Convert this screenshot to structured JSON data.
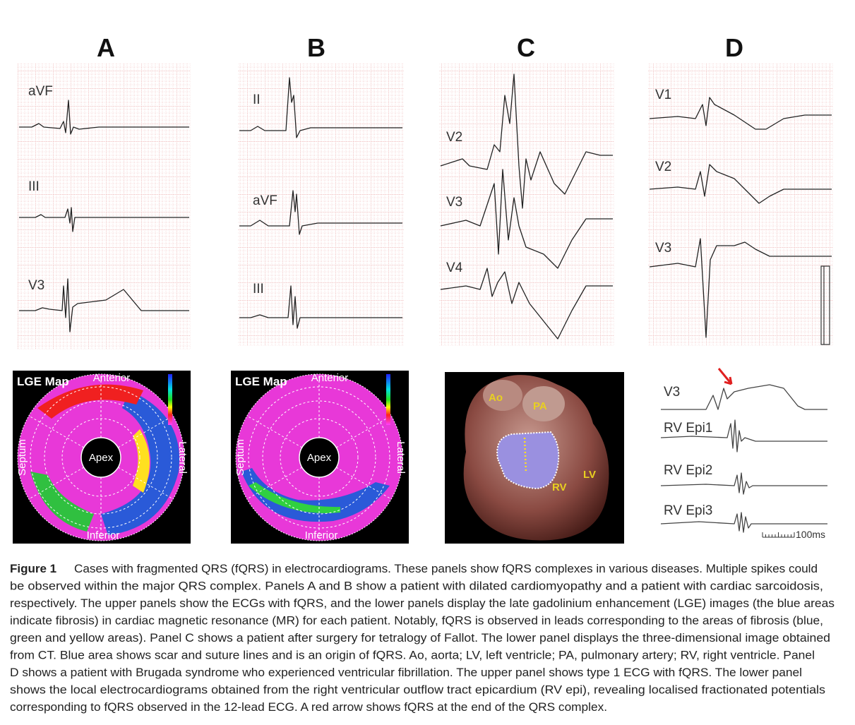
{
  "panels": [
    {
      "letter": "A",
      "leads": [
        "aVF",
        "III",
        "V3"
      ],
      "map": {
        "title": "LGE Map",
        "top": "Anterior",
        "bottom": "Inferior",
        "left": "Septum",
        "right": "Lateral",
        "center": "Apex"
      }
    },
    {
      "letter": "B",
      "leads": [
        "II",
        "aVF",
        "III"
      ],
      "map": {
        "title": "LGE Map",
        "top": "Anterior",
        "bottom": "Inferior",
        "left": "Septum",
        "right": "Lateral",
        "center": "Apex"
      }
    },
    {
      "letter": "C",
      "leads": [
        "V2",
        "V3",
        "V4"
      ],
      "image_labels": [
        "Ao",
        "PA",
        "RV",
        "LV"
      ]
    },
    {
      "letter": "D",
      "leads": [
        "V1",
        "V2",
        "V3"
      ],
      "epi_leads": [
        "V3",
        "RV Epi1",
        "RV Epi2",
        "RV Epi3"
      ],
      "scale": "100ms"
    }
  ],
  "caption": {
    "label": "Figure 1",
    "lines": [
      "Cases with fragmented QRS (fQRS) in electrocardiograms. These panels show fQRS complexes in various diseases. Multiple spikes could",
      "be observed within the major QRS complex. Panels A and B show a patient with dilated cardiomyopathy and a patient with cardiac sarcoidosis,",
      "respectively. The upper panels show the ECGs with fQRS, and the lower panels display the late gadolinium enhancement (LGE) images (the blue areas",
      "indicate fibrosis) in cardiac magnetic resonance (MR) for each patient. Notably, fQRS is observed in leads corresponding to the areas of fibrosis (blue,",
      "green and yellow areas). Panel C shows a patient after surgery for tetralogy of Fallot. The lower panel displays the three-dimensional image obtained",
      "from CT. Blue area shows scar and suture lines and is an origin of fQRS. Ao, aorta; LV, left ventricle; PA, pulmonary artery; RV, right ventricle. Panel",
      "D shows a patient with Brugada syndrome who experienced ventricular fibrillation. The upper panel shows type 1 ECG with fQRS. The lower panel",
      "shows the local electrocardiograms obtained from the right ventricular outflow tract epicardium (RV epi), revealing localised fractionated potentials",
      "corresponding to fQRS observed in the 12-lead ECG. A red arrow shows fQRS at the end of the QRS complex."
    ]
  }
}
